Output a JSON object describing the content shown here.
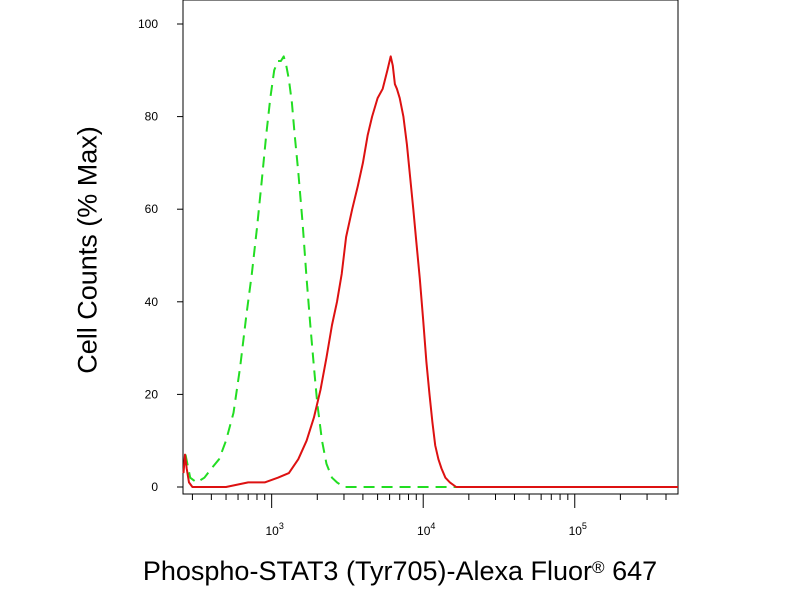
{
  "chart_data": {
    "type": "line",
    "title": "",
    "xlabel_main": "Phospho-STAT3 (Tyr705)-Alexa Fluor",
    "xlabel_reg": "®",
    "xlabel_tail": " 647",
    "ylabel": "Cell Counts (% Max)",
    "x_scale": "log",
    "xlim": [
      260,
      480000
    ],
    "ylim": [
      0,
      100
    ],
    "grid": false,
    "y_ticks": [
      {
        "value": 0,
        "label": "0"
      },
      {
        "value": 20,
        "label": "20"
      },
      {
        "value": 40,
        "label": "40"
      },
      {
        "value": 60,
        "label": "60"
      },
      {
        "value": 80,
        "label": "80"
      },
      {
        "value": 100,
        "label": "100"
      }
    ],
    "x_ticks": [
      {
        "value": 1000,
        "base": "10",
        "exp": "3"
      },
      {
        "value": 10000,
        "base": "10",
        "exp": "4"
      },
      {
        "value": 100000,
        "base": "10",
        "exp": "5"
      }
    ],
    "series": [
      {
        "color": "#22dd22",
        "style": "dashed",
        "x": [
          270,
          290,
          320,
          360,
          400,
          450,
          500,
          560,
          620,
          680,
          740,
          800,
          860,
          920,
          980,
          1040,
          1100,
          1150,
          1200,
          1250,
          1300,
          1360,
          1420,
          1500,
          1600,
          1700,
          1800,
          1900,
          2000,
          2150,
          2300,
          2500,
          2700,
          3000,
          3500,
          5000,
          10000,
          20000,
          50000,
          100000,
          200000,
          480000
        ],
        "y": [
          7,
          2,
          1,
          2,
          4,
          6,
          10,
          16,
          26,
          37,
          46,
          56,
          66,
          76,
          84,
          90,
          92,
          92,
          93,
          91,
          88,
          83,
          76,
          68,
          57,
          45,
          35,
          26,
          18,
          10,
          5,
          2,
          1,
          0,
          0,
          0,
          0,
          0,
          0,
          0,
          0,
          0
        ]
      },
      {
        "color": "#dd1111",
        "style": "solid",
        "x": [
          262,
          268,
          275,
          285,
          300,
          330,
          380,
          500,
          700,
          900,
          1100,
          1300,
          1500,
          1700,
          1900,
          2100,
          2300,
          2500,
          2700,
          2900,
          3100,
          3400,
          3700,
          4000,
          4300,
          4600,
          5000,
          5400,
          5800,
          6100,
          6300,
          6500,
          6700,
          7000,
          7400,
          7800,
          8200,
          8600,
          9000,
          9500,
          10000,
          10500,
          11000,
          11500,
          12000,
          12600,
          13200,
          14000,
          15000,
          16500,
          18000,
          20000,
          25000,
          50000,
          100000,
          200000,
          480000
        ],
        "y": [
          3,
          7,
          4,
          1,
          0,
          0,
          0,
          0,
          1,
          1,
          2,
          3,
          6,
          10,
          15,
          21,
          28,
          35,
          40,
          46,
          54,
          60,
          65,
          70,
          76,
          80,
          84,
          86,
          90,
          93,
          91,
          87,
          86,
          84,
          80,
          74,
          67,
          60,
          53,
          45,
          36,
          27,
          20,
          14,
          9,
          6,
          4,
          2,
          1,
          0,
          0,
          0,
          0,
          0,
          0,
          0,
          0
        ]
      }
    ]
  }
}
